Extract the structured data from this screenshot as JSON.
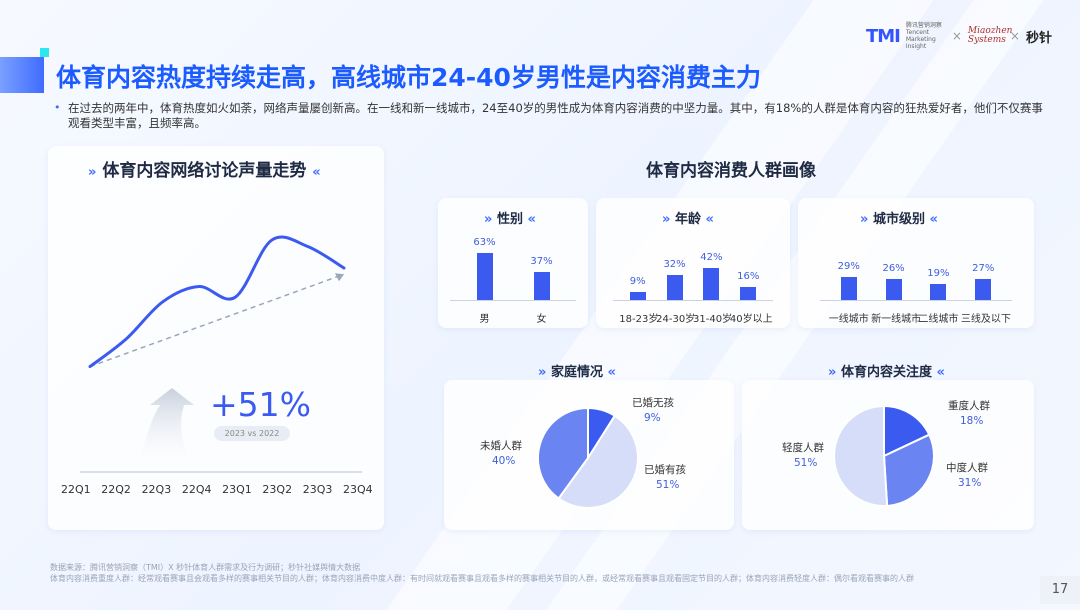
{
  "header": {
    "logo_tmi": "TMI",
    "logo_tmi_sub": "腾讯营销洞察 Tencent Marketing Insight",
    "logo_mz": "Miaozhen Systems",
    "logo_mt": "秒针",
    "separator": "×"
  },
  "title": "体育内容热度持续走高，高线城市24-40岁男性是内容消费主力",
  "description": "在过去的两年中，体育热度如火如荼，网络声量屡创新高。在一线和新一线城市，24至40岁的男性成为体育内容消费的中坚力量。其中，有18%的人群是体育内容的狂热爱好者，他们不仅赛事观看类型丰富，且频率高。",
  "left_section": {
    "title": "体育内容网络讨论声量走势",
    "growth": "+51%",
    "growth_note": "2023 vs 2022"
  },
  "right_section": {
    "title": "体育内容消费人群画像"
  },
  "colors": {
    "accent": "#3b5bf0",
    "title_blue": "#1c5cff",
    "pie_light": "#d6ddf8",
    "pie_mid": "#6a84f2",
    "pie_dark": "#3b5bf0"
  },
  "chart_data": [
    {
      "type": "line",
      "title": "体育内容网络讨论声量走势",
      "x": [
        "22Q1",
        "22Q2",
        "22Q3",
        "22Q4",
        "23Q1",
        "23Q2",
        "23Q3",
        "23Q4"
      ],
      "series": [
        {
          "values": [
            10,
            28,
            52,
            62,
            55,
            92,
            88,
            74
          ]
        }
      ],
      "trendline": [
        10,
        70
      ],
      "ylim": [
        0,
        100
      ],
      "note": "no y-axis values shown; relative trend"
    },
    {
      "type": "bar",
      "title": "性别",
      "categories": [
        "男",
        "女"
      ],
      "values": [
        63,
        37
      ],
      "labels": [
        "63%",
        "37%"
      ],
      "ylim": [
        0,
        70
      ]
    },
    {
      "type": "bar",
      "title": "年龄",
      "categories": [
        "18-23岁",
        "24-30岁",
        "31-40岁",
        "40岁以上"
      ],
      "values": [
        9,
        32,
        42,
        16
      ],
      "labels": [
        "9%",
        "32%",
        "42%",
        "16%"
      ],
      "ylim": [
        0,
        70
      ]
    },
    {
      "type": "bar",
      "title": "城市级别",
      "categories": [
        "一线城市",
        "新一线城市",
        "二线城市",
        "三线及以下"
      ],
      "values": [
        29,
        26,
        19,
        27
      ],
      "labels": [
        "29%",
        "26%",
        "19%",
        "27%"
      ],
      "ylim": [
        0,
        70
      ]
    },
    {
      "type": "pie",
      "title": "家庭情况",
      "categories": [
        "已婚无孩",
        "已婚有孩",
        "未婚人群"
      ],
      "values": [
        9,
        51,
        40
      ],
      "labels": [
        "9%",
        "51%",
        "40%"
      ]
    },
    {
      "type": "pie",
      "title": "体育内容关注度",
      "categories": [
        "重度人群",
        "中度人群",
        "轻度人群"
      ],
      "values": [
        18,
        31,
        51
      ],
      "labels": [
        "18%",
        "31%",
        "51%"
      ]
    }
  ],
  "footer": {
    "source": "数据来源：腾讯营销洞察（TMI）X 秒针体育人群需求及行为调研；秒针社媒舆情大数据",
    "definition": "体育内容消费重度人群：经常观看赛事且会观看多样的赛事相关节目的人群；体育内容消费中度人群：有时间就观看赛事且观看多样的赛事相关节目的人群，或经常观看赛事且观看固定节目的人群；体育内容消费轻度人群：偶尔看观看赛事的人群",
    "page": "17"
  }
}
